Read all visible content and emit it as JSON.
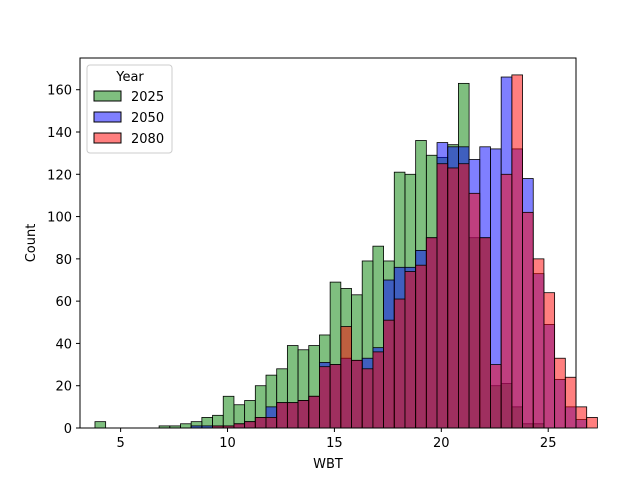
{
  "chart_data": {
    "type": "bar",
    "xlabel": "WBT",
    "ylabel": "Count",
    "xlim": [
      3.1,
      26.3
    ],
    "ylim": [
      0,
      175
    ],
    "xticks": [
      5,
      10,
      15,
      20,
      25
    ],
    "yticks": [
      0,
      20,
      40,
      60,
      80,
      100,
      120,
      140,
      160
    ],
    "bin_start": 3.8,
    "bin_width": 0.5,
    "grid": false,
    "legend": {
      "title": "Year",
      "position": "top-left"
    },
    "series": [
      {
        "name": "2025",
        "color": "#008000",
        "values": [
          3,
          0,
          0,
          0,
          0,
          0,
          1,
          1,
          2,
          3,
          5,
          6,
          15,
          11,
          13,
          20,
          25,
          28,
          39,
          37,
          39,
          44,
          69,
          66,
          63,
          79,
          86,
          79,
          121,
          120,
          136,
          129,
          128,
          134,
          163,
          90,
          90,
          20,
          21,
          10,
          2,
          2,
          0,
          0,
          0,
          0
        ]
      },
      {
        "name": "2050",
        "color": "#0000ff",
        "values": [
          0,
          0,
          0,
          0,
          0,
          0,
          0,
          0,
          0,
          1,
          1,
          1,
          1,
          2,
          3,
          5,
          10,
          12,
          12,
          13,
          15,
          31,
          30,
          33,
          32,
          33,
          38,
          70,
          76,
          76,
          84,
          90,
          135,
          133,
          133,
          127,
          133,
          132,
          166,
          132,
          118,
          73,
          49,
          23,
          10,
          4
        ]
      },
      {
        "name": "2080",
        "color": "#ff0000",
        "values": [
          0,
          0,
          0,
          0,
          0,
          0,
          0,
          0,
          0,
          0,
          0,
          1,
          1,
          2,
          3,
          5,
          5,
          12,
          12,
          13,
          15,
          29,
          30,
          48,
          32,
          28,
          36,
          51,
          61,
          74,
          77,
          90,
          125,
          123,
          125,
          111,
          90,
          30,
          120,
          167,
          102,
          80,
          64,
          33,
          24,
          10,
          5
        ]
      }
    ]
  }
}
